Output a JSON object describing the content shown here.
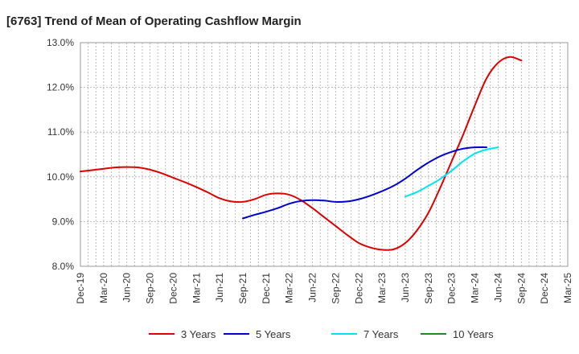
{
  "chart_data": {
    "type": "line",
    "title": "[6763]  Trend of Mean of Operating Cashflow Margin",
    "xlabel": "",
    "ylabel": "",
    "ylim": [
      8.0,
      13.0
    ],
    "y_ticks": [
      "8.0%",
      "9.0%",
      "10.0%",
      "11.0%",
      "12.0%",
      "13.0%"
    ],
    "y_tick_values": [
      8.0,
      9.0,
      10.0,
      11.0,
      12.0,
      13.0
    ],
    "x_tick_labels": [
      "Dec-19",
      "Mar-20",
      "Jun-20",
      "Sep-20",
      "Dec-20",
      "Mar-21",
      "Jun-21",
      "Sep-21",
      "Dec-21",
      "Mar-22",
      "Jun-22",
      "Sep-22",
      "Dec-22",
      "Mar-23",
      "Jun-23",
      "Sep-23",
      "Dec-23",
      "Mar-24",
      "Jun-24",
      "Sep-24",
      "Dec-24",
      "Mar-25"
    ],
    "x_start": "Dec-19",
    "month_count": 63,
    "grid": true,
    "legend_position": "bottom",
    "series": [
      {
        "name": "3 Years",
        "color": "#dd0000",
        "start_index": 0,
        "values": [
          10.12,
          10.15,
          10.18,
          10.21,
          10.22,
          10.21,
          10.16,
          10.08,
          9.98,
          9.88,
          9.77,
          9.65,
          9.52,
          9.45,
          9.44,
          9.5,
          9.6,
          9.63,
          9.6,
          9.48,
          9.3,
          9.1,
          8.9,
          8.7,
          8.52,
          8.42,
          8.37,
          8.38,
          8.52,
          8.8,
          9.2,
          9.75,
          10.35,
          10.95,
          11.6,
          12.2,
          12.55,
          12.68,
          12.6
        ]
      },
      {
        "name": "5 Years",
        "color": "#0000cc",
        "start_index": 21,
        "values": [
          9.07,
          9.15,
          9.22,
          9.3,
          9.4,
          9.46,
          9.48,
          9.47,
          9.44,
          9.45,
          9.5,
          9.58,
          9.68,
          9.8,
          9.96,
          10.15,
          10.32,
          10.46,
          10.56,
          10.63,
          10.66,
          10.66
        ]
      },
      {
        "name": "7 Years",
        "color": "#00e5ee",
        "start_index": 42,
        "values": [
          9.56,
          9.66,
          9.8,
          9.95,
          10.14,
          10.35,
          10.52,
          10.61,
          10.66
        ]
      },
      {
        "name": "10 Years",
        "color": "#228b22",
        "start_index": 0,
        "values": []
      }
    ]
  }
}
